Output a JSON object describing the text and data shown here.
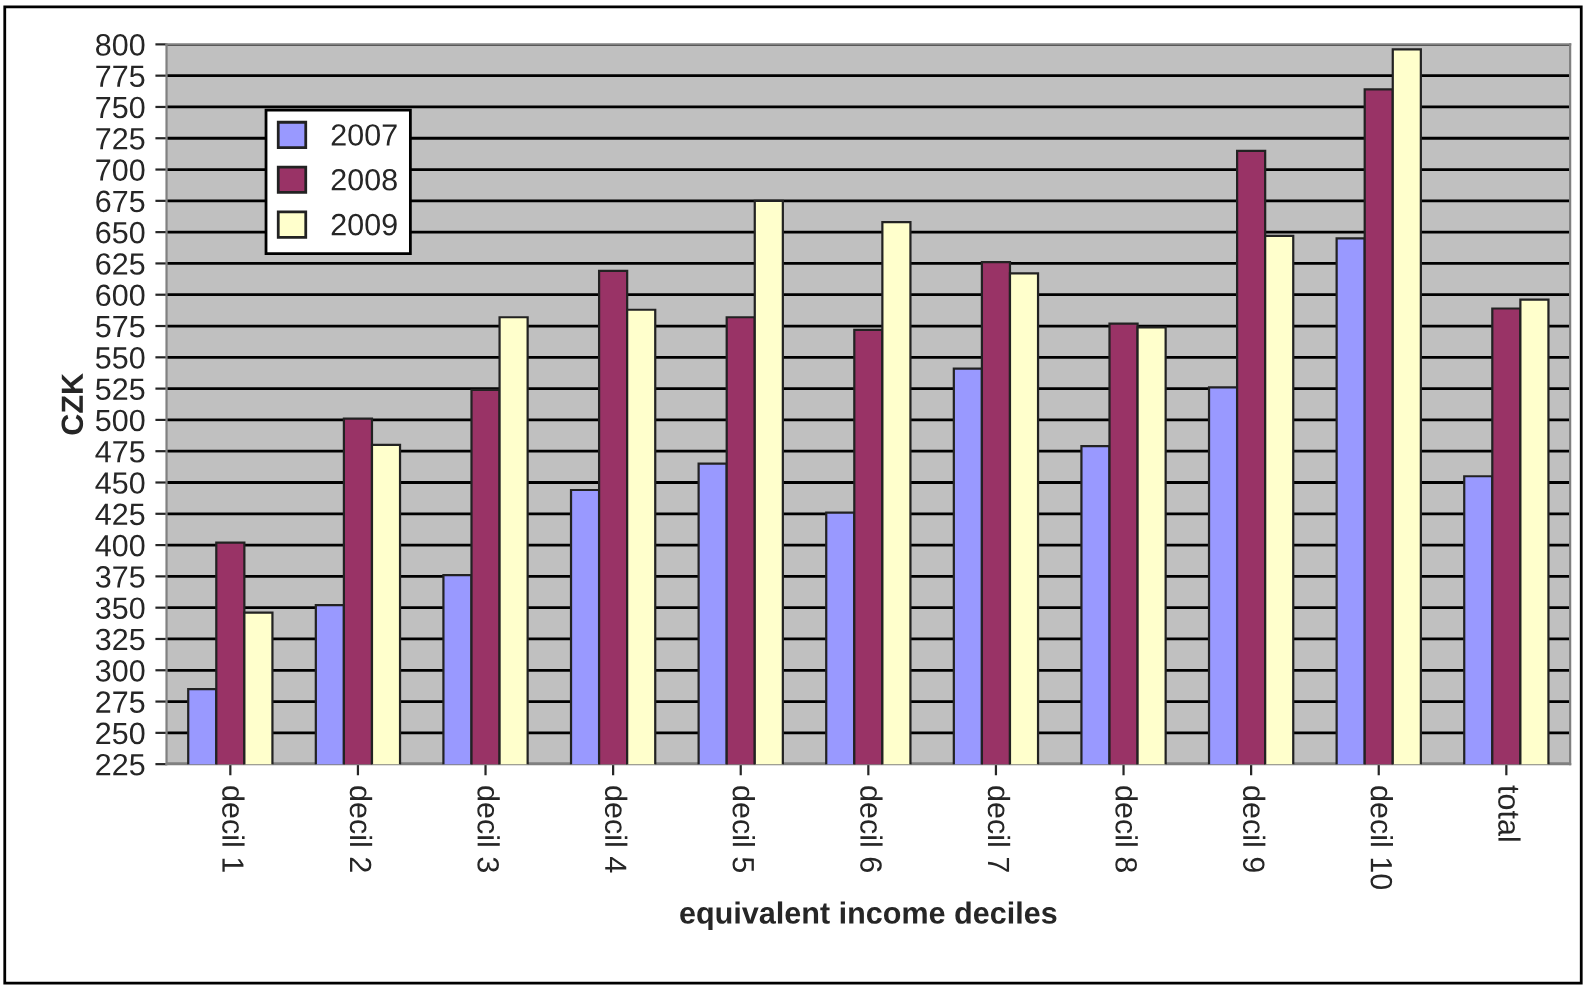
{
  "chart_data": {
    "type": "bar",
    "xlabel": "equivalent income deciles",
    "ylabel": "CZK",
    "categories": [
      "decil 1",
      "decil 2",
      "decil 3",
      "decil 4",
      "decil 5",
      "decil 6",
      "decil 7",
      "decil 8",
      "decil 9",
      "decil 10",
      "total"
    ],
    "series": [
      {
        "name": "2007",
        "color": "#9999ff",
        "values": [
          285,
          352,
          376,
          444,
          465,
          426,
          541,
          479,
          526,
          645,
          455
        ]
      },
      {
        "name": "2008",
        "color": "#993366",
        "values": [
          402,
          501,
          524,
          619,
          582,
          572,
          626,
          577,
          715,
          764,
          589
        ]
      },
      {
        "name": "2009",
        "color": "#ffffcc",
        "values": [
          346,
          480,
          582,
          588,
          675,
          658,
          617,
          574,
          647,
          796,
          596
        ]
      }
    ],
    "ylim": [
      225,
      800
    ],
    "yticks": [
      225,
      250,
      275,
      300,
      325,
      350,
      375,
      400,
      425,
      450,
      475,
      500,
      525,
      550,
      575,
      600,
      625,
      650,
      675,
      700,
      725,
      750,
      775,
      800
    ],
    "grid": "y",
    "legend": "top left"
  }
}
